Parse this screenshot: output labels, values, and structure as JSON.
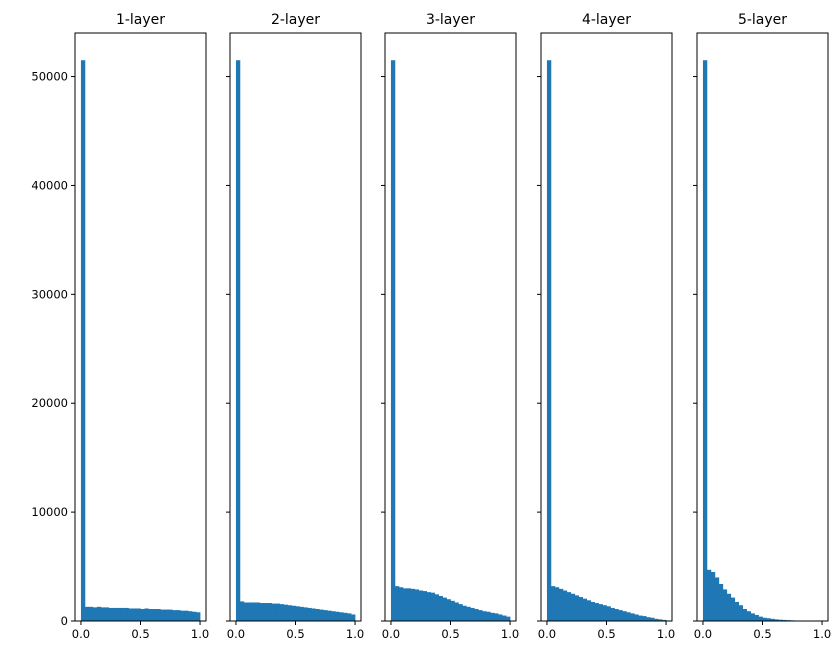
{
  "chart_data": {
    "type": "bar",
    "grid": false,
    "sharey": true,
    "ylim": [
      0,
      54000
    ],
    "xlim": [
      -0.05,
      1.05
    ],
    "x_ticks": [
      "0.0",
      "0.5",
      "1.0"
    ],
    "y_ticks": [
      "0",
      "10000",
      "20000",
      "30000",
      "40000",
      "50000"
    ],
    "y_tick_values": [
      0,
      10000,
      20000,
      30000,
      40000,
      50000
    ],
    "bins": 30,
    "bar_color": "#1f77b4",
    "panels": [
      {
        "title": "1-layer",
        "values": [
          51500,
          1300,
          1300,
          1250,
          1300,
          1250,
          1250,
          1200,
          1200,
          1200,
          1200,
          1200,
          1150,
          1150,
          1150,
          1100,
          1150,
          1100,
          1100,
          1100,
          1050,
          1050,
          1050,
          1000,
          1000,
          950,
          950,
          900,
          850,
          800
        ]
      },
      {
        "title": "2-layer",
        "values": [
          51500,
          1800,
          1700,
          1700,
          1700,
          1700,
          1650,
          1650,
          1650,
          1600,
          1600,
          1550,
          1500,
          1450,
          1400,
          1350,
          1300,
          1250,
          1200,
          1150,
          1100,
          1050,
          1000,
          950,
          900,
          850,
          800,
          750,
          700,
          600
        ]
      },
      {
        "title": "3-layer",
        "values": [
          51500,
          3200,
          3100,
          3000,
          3000,
          2950,
          2900,
          2800,
          2750,
          2650,
          2600,
          2450,
          2300,
          2150,
          2000,
          1850,
          1700,
          1550,
          1400,
          1300,
          1200,
          1100,
          1000,
          900,
          850,
          750,
          700,
          600,
          500,
          400
        ]
      },
      {
        "title": "4-layer",
        "values": [
          51500,
          3200,
          3100,
          2950,
          2800,
          2650,
          2500,
          2350,
          2200,
          2050,
          1900,
          1750,
          1650,
          1550,
          1450,
          1350,
          1200,
          1100,
          1000,
          900,
          800,
          700,
          600,
          500,
          450,
          350,
          300,
          200,
          150,
          100
        ]
      },
      {
        "title": "5-layer",
        "values": [
          51500,
          4700,
          4500,
          4000,
          3400,
          2900,
          2500,
          2150,
          1750,
          1450,
          1100,
          900,
          700,
          550,
          400,
          300,
          250,
          200,
          150,
          120,
          100,
          80,
          60,
          40,
          30,
          20,
          15,
          10,
          5,
          5
        ]
      }
    ]
  }
}
